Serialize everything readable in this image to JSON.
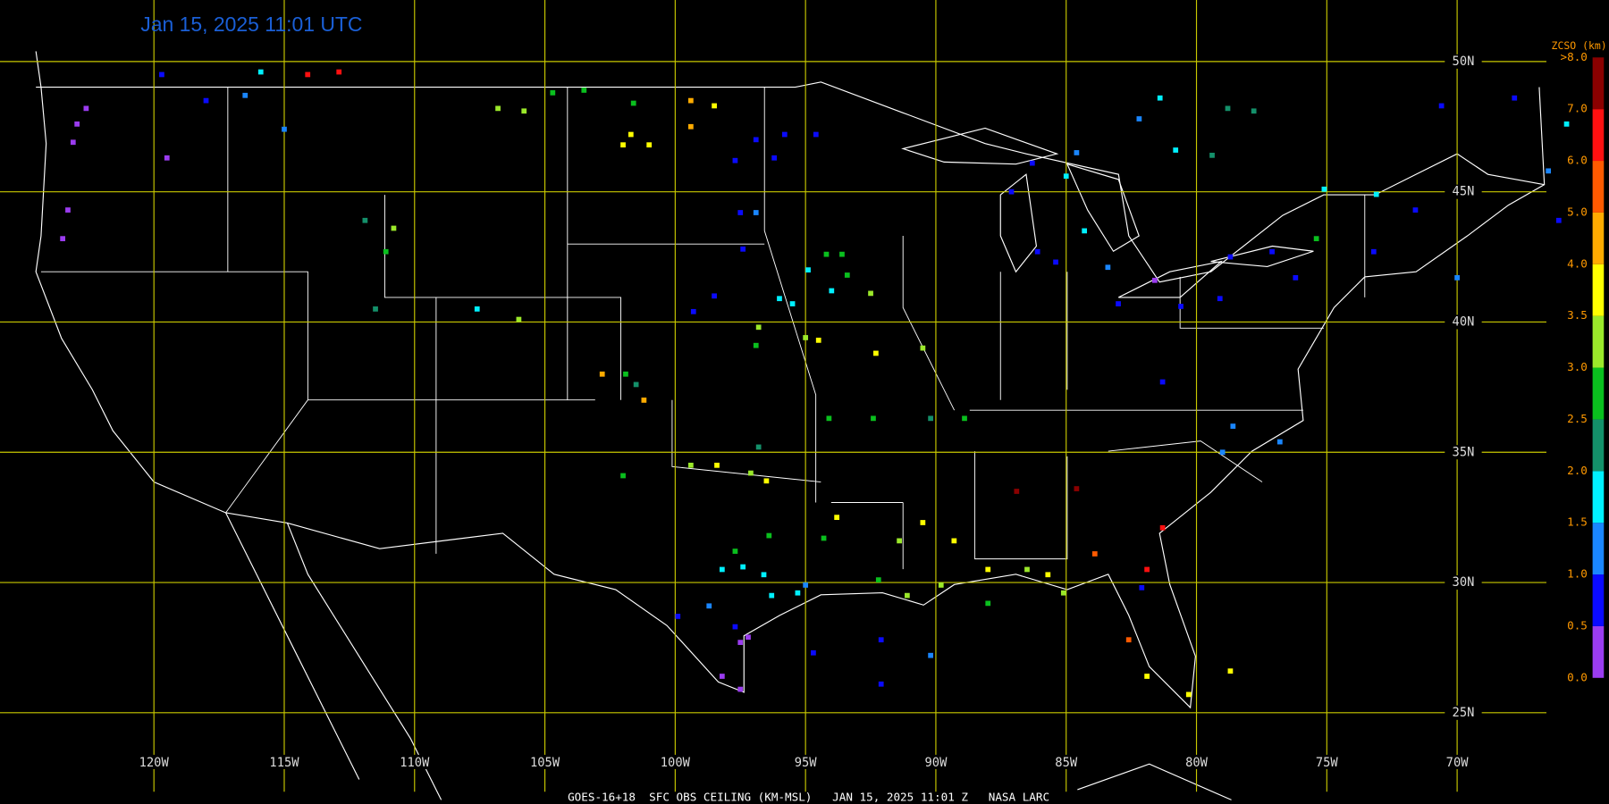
{
  "title": "Jan 15, 2025 11:01 UTC",
  "footer": "GOES-16+18  SFC OBS CEILING (KM-MSL)   JAN 15, 2025 11:01 Z   NASA LARC",
  "lat_lines": [
    {
      "value": 50,
      "label": "50N"
    },
    {
      "value": 45,
      "label": "45N"
    },
    {
      "value": 40,
      "label": "40N"
    },
    {
      "value": 35,
      "label": "35N"
    },
    {
      "value": 30,
      "label": "30N"
    },
    {
      "value": 25,
      "label": "25N"
    }
  ],
  "lon_lines": [
    {
      "value": -120,
      "label": "120W"
    },
    {
      "value": -115,
      "label": "115W"
    },
    {
      "value": -110,
      "label": "110W"
    },
    {
      "value": -105,
      "label": "105W"
    },
    {
      "value": -100,
      "label": "100W"
    },
    {
      "value": -95,
      "label": "95W"
    },
    {
      "value": -90,
      "label": "90W"
    },
    {
      "value": -85,
      "label": "85W"
    },
    {
      "value": -80,
      "label": "80W"
    },
    {
      "value": -75,
      "label": "75W"
    },
    {
      "value": -70,
      "label": "70W"
    }
  ],
  "colorbar": {
    "title": "ZCSO (km)",
    "ticks": [
      {
        "value": 0,
        "label": "0.0"
      },
      {
        "value": 0.5,
        "label": "0.5"
      },
      {
        "value": 1,
        "label": "1.0"
      },
      {
        "value": 1.5,
        "label": "1.5"
      },
      {
        "value": 2,
        "label": "2.0"
      },
      {
        "value": 2.5,
        "label": "2.5"
      },
      {
        "value": 3,
        "label": "3.0"
      },
      {
        "value": 3.5,
        "label": "3.5"
      },
      {
        "value": 4,
        "label": "4.0"
      },
      {
        "value": 5,
        "label": "5.0"
      },
      {
        "value": 6,
        "label": "6.0"
      },
      {
        "value": 7,
        "label": "7.0"
      },
      {
        "value": 8,
        "label": ">8.0"
      }
    ],
    "colors": [
      "#9b3cf0",
      "#0a0aff",
      "#1a86ff",
      "#00f0ff",
      "#14906a",
      "#0abf1e",
      "#9be82a",
      "#ffff00",
      "#ffab00",
      "#ff5a00",
      "#ff1010",
      "#8a0000"
    ]
  },
  "observations": [
    [
      -122.95,
      47.6,
      0.3
    ],
    [
      -123.1,
      46.9,
      0.3
    ],
    [
      -122.6,
      48.2,
      0.3
    ],
    [
      -123.3,
      44.3,
      0.3
    ],
    [
      -123.5,
      43.2,
      0.3
    ],
    [
      -119.5,
      46.3,
      0.3
    ],
    [
      -119.7,
      49.5,
      0.8
    ],
    [
      -118.0,
      48.5,
      0.8
    ],
    [
      -116.5,
      48.7,
      1.2
    ],
    [
      -115.9,
      49.6,
      1.8
    ],
    [
      -114.1,
      49.5,
      6.5
    ],
    [
      -112.9,
      49.6,
      6.5
    ],
    [
      -115.0,
      47.4,
      1.2
    ],
    [
      -106.8,
      48.2,
      3.2
    ],
    [
      -105.8,
      48.1,
      3.2
    ],
    [
      -104.7,
      48.8,
      2.7
    ],
    [
      -103.5,
      48.9,
      2.7
    ],
    [
      -101.6,
      48.4,
      2.7
    ],
    [
      -99.4,
      48.5,
      4.5
    ],
    [
      -98.5,
      48.3,
      3.8
    ],
    [
      -99.4,
      47.5,
      4.5
    ],
    [
      -101.7,
      47.2,
      3.8
    ],
    [
      -102.0,
      46.8,
      3.8
    ],
    [
      -101.0,
      46.8,
      3.8
    ],
    [
      -96.9,
      47.0,
      0.8
    ],
    [
      -95.8,
      47.2,
      0.8
    ],
    [
      -94.6,
      47.2,
      0.8
    ],
    [
      -96.2,
      46.3,
      0.8
    ],
    [
      -97.7,
      46.2,
      0.8
    ],
    [
      -97.5,
      44.2,
      0.8
    ],
    [
      -96.9,
      44.2,
      1.2
    ],
    [
      -97.4,
      42.8,
      0.8
    ],
    [
      -111.9,
      43.9,
      2.2
    ],
    [
      -110.8,
      43.6,
      3.2
    ],
    [
      -111.1,
      42.7,
      2.7
    ],
    [
      -111.5,
      40.5,
      2.2
    ],
    [
      -107.6,
      40.5,
      1.8
    ],
    [
      -106.0,
      40.1,
      3.2
    ],
    [
      -102.8,
      38.0,
      4.5
    ],
    [
      -101.9,
      38.0,
      2.7
    ],
    [
      -101.2,
      37.0,
      4.5
    ],
    [
      -101.5,
      37.6,
      2.2
    ],
    [
      -94.2,
      42.6,
      2.7
    ],
    [
      -93.6,
      42.6,
      2.7
    ],
    [
      -94.9,
      42.0,
      1.8
    ],
    [
      -93.4,
      41.8,
      2.7
    ],
    [
      -92.5,
      41.1,
      3.2
    ],
    [
      -94.0,
      41.2,
      1.8
    ],
    [
      -96.0,
      40.9,
      1.8
    ],
    [
      -95.5,
      40.7,
      1.8
    ],
    [
      -96.8,
      39.8,
      3.2
    ],
    [
      -96.9,
      39.1,
      2.7
    ],
    [
      -95.0,
      39.4,
      3.2
    ],
    [
      -94.5,
      39.3,
      3.8
    ],
    [
      -92.3,
      38.8,
      3.8
    ],
    [
      -90.5,
      39.0,
      3.2
    ],
    [
      -99.3,
      40.4,
      0.8
    ],
    [
      -98.5,
      41.0,
      0.8
    ],
    [
      -94.1,
      36.3,
      2.7
    ],
    [
      -92.4,
      36.3,
      2.7
    ],
    [
      -90.2,
      36.3,
      2.2
    ],
    [
      -88.9,
      36.3,
      2.7
    ],
    [
      -96.8,
      35.2,
      2.2
    ],
    [
      -99.4,
      34.5,
      3.2
    ],
    [
      -98.4,
      34.5,
      3.8
    ],
    [
      -96.5,
      33.9,
      3.8
    ],
    [
      -97.1,
      34.2,
      3.2
    ],
    [
      -102.0,
      34.1,
      2.7
    ],
    [
      -97.7,
      31.2,
      2.7
    ],
    [
      -96.4,
      31.8,
      2.7
    ],
    [
      -93.8,
      32.5,
      3.8
    ],
    [
      -94.3,
      31.7,
      2.7
    ],
    [
      -98.2,
      30.5,
      1.8
    ],
    [
      -97.4,
      30.6,
      1.8
    ],
    [
      -96.6,
      30.3,
      1.8
    ],
    [
      -96.3,
      29.5,
      1.8
    ],
    [
      -95.3,
      29.6,
      1.8
    ],
    [
      -95.0,
      29.9,
      1.2
    ],
    [
      -99.9,
      28.7,
      0.8
    ],
    [
      -98.7,
      29.1,
      1.2
    ],
    [
      -97.7,
      28.3,
      0.8
    ],
    [
      -97.2,
      27.9,
      0.3
    ],
    [
      -97.5,
      27.7,
      0.3
    ],
    [
      -98.2,
      26.4,
      0.3
    ],
    [
      -97.5,
      25.9,
      0.3
    ],
    [
      -91.4,
      31.6,
      3.2
    ],
    [
      -90.5,
      32.3,
      3.8
    ],
    [
      -89.3,
      31.6,
      3.8
    ],
    [
      -92.2,
      30.1,
      2.7
    ],
    [
      -91.1,
      29.5,
      3.2
    ],
    [
      -89.8,
      29.9,
      3.2
    ],
    [
      -88.0,
      30.5,
      3.8
    ],
    [
      -86.5,
      30.5,
      3.2
    ],
    [
      -85.7,
      30.3,
      3.8
    ],
    [
      -85.1,
      29.6,
      3.2
    ],
    [
      -88.0,
      29.2,
      2.7
    ],
    [
      -92.1,
      27.8,
      0.8
    ],
    [
      -92.1,
      26.1,
      0.8
    ],
    [
      -94.7,
      27.3,
      0.8
    ],
    [
      -90.2,
      27.2,
      1.2
    ],
    [
      -86.9,
      33.5,
      7.5
    ],
    [
      -84.6,
      33.6,
      7.5
    ],
    [
      -81.3,
      32.1,
      6.5
    ],
    [
      -83.9,
      31.1,
      5.5
    ],
    [
      -81.9,
      30.5,
      6.5
    ],
    [
      -82.1,
      29.8,
      0.8
    ],
    [
      -82.6,
      27.8,
      5.5
    ],
    [
      -81.9,
      26.4,
      3.8
    ],
    [
      -80.3,
      25.7,
      3.8
    ],
    [
      -78.7,
      26.6,
      3.8
    ],
    [
      -86.3,
      46.1,
      0.8
    ],
    [
      -87.1,
      45.0,
      0.8
    ],
    [
      -84.6,
      46.5,
      1.2
    ],
    [
      -85.0,
      45.6,
      1.8
    ],
    [
      -84.3,
      43.5,
      1.8
    ],
    [
      -86.1,
      42.7,
      0.8
    ],
    [
      -85.4,
      42.3,
      0.8
    ],
    [
      -83.4,
      42.1,
      1.2
    ],
    [
      -82.2,
      47.8,
      1.2
    ],
    [
      -80.8,
      46.6,
      1.8
    ],
    [
      -81.4,
      48.6,
      1.8
    ],
    [
      -79.4,
      46.4,
      2.2
    ],
    [
      -78.8,
      48.2,
      2.2
    ],
    [
      -77.8,
      48.1,
      2.2
    ],
    [
      -81.6,
      41.6,
      0.3
    ],
    [
      -83.0,
      40.7,
      0.8
    ],
    [
      -80.6,
      40.6,
      0.8
    ],
    [
      -78.7,
      42.5,
      0.8
    ],
    [
      -77.1,
      42.7,
      0.8
    ],
    [
      -75.4,
      43.2,
      2.7
    ],
    [
      -76.2,
      41.7,
      0.8
    ],
    [
      -79.1,
      40.9,
      0.8
    ],
    [
      -81.3,
      37.7,
      0.8
    ],
    [
      -78.6,
      36.0,
      1.2
    ],
    [
      -76.8,
      35.4,
      1.2
    ],
    [
      -79.0,
      35.0,
      1.2
    ],
    [
      -73.2,
      42.7,
      0.8
    ],
    [
      -71.6,
      44.3,
      0.8
    ],
    [
      -70.0,
      41.7,
      1.2
    ],
    [
      -73.1,
      44.9,
      1.8
    ],
    [
      -70.6,
      48.3,
      0.8
    ],
    [
      -67.8,
      48.6,
      0.8
    ],
    [
      -66.5,
      45.8,
      1.2
    ],
    [
      -65.8,
      47.6,
      1.8
    ],
    [
      -66.1,
      43.9,
      0.8
    ],
    [
      -75.1,
      45.1,
      1.8
    ]
  ]
}
